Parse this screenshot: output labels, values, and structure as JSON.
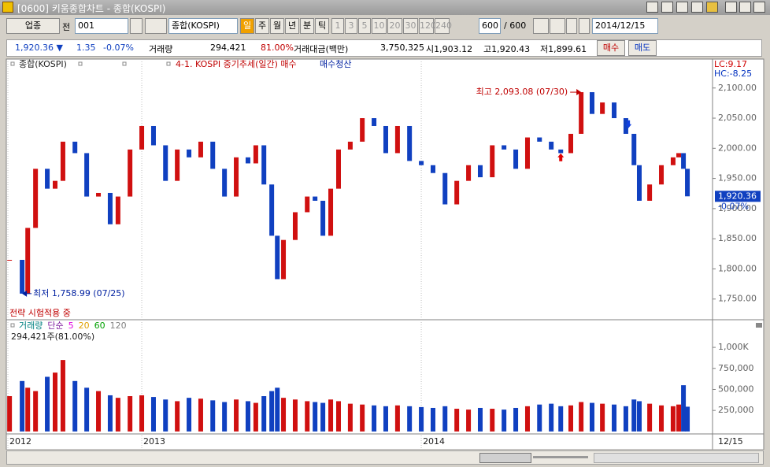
{
  "window": {
    "title": "[0600] 키움종합차트 - 종합(KOSPI)"
  },
  "toolbar": {
    "market": "업종",
    "prev": "전",
    "code": "001",
    "name": "종합(KOSPI)",
    "periods": [
      "일",
      "주",
      "월",
      "년",
      "분",
      "틱"
    ],
    "intervals": [
      "1",
      "3",
      "5",
      "10",
      "20",
      "30",
      "120",
      "240"
    ],
    "count": "600",
    "max": "/ 600",
    "date": "2014/12/15"
  },
  "quote": {
    "price": "1,920.36 ▼",
    "change": "1.35",
    "change_pct": "-0.07%",
    "volume_label": "거래량",
    "volume": "294,421",
    "volume_pct": "81.00%",
    "amount_label": "거래대금(백만)",
    "amount": "3,750,325",
    "open": "시1,903.12",
    "high": "고1,920.43",
    "low": "저1,899.61",
    "buy": "매수",
    "sell": "매도"
  },
  "chart_data": [
    {
      "type": "candlestick",
      "title": "종합(KOSPI)",
      "strategy": "4-1. KOSPI 중기추세(일간) 매수",
      "strategy_exit": "매수청산",
      "status": "전략 시험적용 중",
      "lc": "LC:9.17",
      "hc": "HC:-8.25",
      "x": [
        2012.527,
        2012.572,
        2012.592,
        2012.62,
        2012.662,
        2012.69,
        2012.718,
        2012.761,
        2012.803,
        2012.845,
        2012.887,
        2012.915,
        2012.958,
        2013.0,
        2013.042,
        2013.085,
        2013.127,
        2013.169,
        2013.211,
        2013.254,
        2013.296,
        2013.338,
        2013.38,
        2013.408,
        2013.437,
        2013.465,
        2013.485,
        2013.507,
        2013.549,
        2013.592,
        2013.62,
        2013.648,
        2013.676,
        2013.704,
        2013.746,
        2013.789,
        2013.831,
        2013.873,
        2013.915,
        2013.958,
        2014.0,
        2014.042,
        2014.085,
        2014.127,
        2014.169,
        2014.211,
        2014.254,
        2014.296,
        2014.338,
        2014.38,
        2014.423,
        2014.465,
        2014.499,
        2014.535,
        2014.572,
        2014.611,
        2014.648,
        2014.69,
        2014.732,
        2014.761,
        2014.78,
        2014.817,
        2014.859,
        2014.901,
        2014.921,
        2014.938,
        2014.952
      ],
      "values": [
        1815,
        1758.99,
        1868,
        1966,
        1933,
        1946,
        2011,
        1992,
        1920,
        1926,
        1874,
        1920,
        1998,
        2037,
        2005,
        1946,
        1998,
        1985,
        2011,
        1966,
        1920,
        1985,
        1975,
        2005,
        1940,
        1855,
        1783,
        1848,
        1894,
        1920,
        1913,
        1855,
        1933,
        1998,
        2011,
        2050,
        2037,
        1992,
        2037,
        1979,
        1972,
        1959,
        1907,
        1946,
        1972,
        1952,
        2005,
        1998,
        1966,
        2018,
        2011,
        1998,
        1992,
        2024,
        2093.08,
        2057,
        2076,
        2050,
        2024,
        1972,
        1913,
        1940,
        1972,
        1985,
        1992,
        1966,
        1920.36
      ],
      "up_color": "#d01010",
      "down_color": "#1040c0",
      "xlim": [
        2012.521,
        2015.042
      ],
      "ylim": [
        1717,
        2148
      ],
      "yticks": [
        {
          "value": 1750,
          "label": "1,750.00"
        },
        {
          "value": 1800,
          "label": "1,800.00"
        },
        {
          "value": 1850,
          "label": "1,850.00"
        },
        {
          "value": 1900,
          "label": "1,900.00"
        },
        {
          "value": 1950,
          "label": "1,950.00"
        },
        {
          "value": 2000,
          "label": "2,000.00"
        },
        {
          "value": 2050,
          "label": "2,050.00"
        },
        {
          "value": 2100,
          "label": "2,100.00"
        }
      ],
      "annotations": [
        {
          "text": "최고 2,093.08 (07/30)",
          "x": 2014.572,
          "y": 2093.08,
          "color": "#c00000"
        },
        {
          "text": "최저 1,758.99 (07/25)",
          "x": 2012.572,
          "y": 1758.99,
          "color": "#0020a0"
        }
      ],
      "buy_signal": {
        "x": 2014.499,
        "y": 1985,
        "color": "#e00000"
      },
      "sell_signal": {
        "x": 2014.741,
        "y": 2040,
        "color": "#1040e0"
      },
      "last": {
        "value": 1920.36,
        "label": "1,920.36"
      },
      "last_change": "-0.07%"
    },
    {
      "type": "bar",
      "title": "거래량",
      "ma_label": "단순",
      "current": "294,421주(81.00%)",
      "last_date": "12/15",
      "title_color": "#008080",
      "ma_label_color": "#8020a0",
      "ma": [
        {
          "name": "5",
          "color": "#e000e0"
        },
        {
          "name": "20",
          "color": "#e0a000"
        },
        {
          "name": "60",
          "color": "#00a000"
        },
        {
          "name": "120",
          "color": "#808080"
        }
      ],
      "x": [
        2012.527,
        2012.572,
        2012.592,
        2012.62,
        2012.662,
        2012.69,
        2012.718,
        2012.761,
        2012.803,
        2012.845,
        2012.887,
        2012.915,
        2012.958,
        2013.0,
        2013.042,
        2013.085,
        2013.127,
        2013.169,
        2013.211,
        2013.254,
        2013.296,
        2013.338,
        2013.38,
        2013.408,
        2013.437,
        2013.465,
        2013.485,
        2013.507,
        2013.549,
        2013.592,
        2013.62,
        2013.648,
        2013.676,
        2013.704,
        2013.746,
        2013.789,
        2013.831,
        2013.873,
        2013.915,
        2013.958,
        2014.0,
        2014.042,
        2014.085,
        2014.127,
        2014.169,
        2014.211,
        2014.254,
        2014.296,
        2014.338,
        2014.38,
        2014.423,
        2014.465,
        2014.499,
        2014.535,
        2014.572,
        2014.611,
        2014.648,
        2014.69,
        2014.732,
        2014.761,
        2014.78,
        2014.817,
        2014.859,
        2014.901,
        2014.921,
        2014.938,
        2014.952
      ],
      "values": [
        420000,
        600000,
        520000,
        480000,
        650000,
        700000,
        850000,
        600000,
        520000,
        480000,
        430000,
        400000,
        420000,
        430000,
        410000,
        380000,
        360000,
        400000,
        390000,
        370000,
        350000,
        380000,
        360000,
        340000,
        420000,
        480000,
        520000,
        400000,
        380000,
        360000,
        350000,
        340000,
        380000,
        360000,
        330000,
        320000,
        310000,
        300000,
        310000,
        300000,
        290000,
        280000,
        300000,
        270000,
        260000,
        280000,
        270000,
        260000,
        280000,
        300000,
        320000,
        330000,
        300000,
        310000,
        350000,
        340000,
        330000,
        320000,
        300000,
        380000,
        360000,
        330000,
        310000,
        300000,
        320000,
        550000,
        294421
      ],
      "xlim": [
        2012.521,
        2015.042
      ],
      "xticks": [
        {
          "value": 2012.521,
          "label": "2012"
        },
        {
          "value": 2013,
          "label": "2013"
        },
        {
          "value": 2014,
          "label": "2014"
        }
      ],
      "ylim": [
        -20000,
        1310000
      ],
      "yticks": [
        {
          "value": 250000,
          "label": "250,000"
        },
        {
          "value": 500000,
          "label": "500,000"
        },
        {
          "value": 750000,
          "label": "750,000"
        },
        {
          "value": 1000000,
          "label": "1,000K"
        }
      ]
    }
  ]
}
